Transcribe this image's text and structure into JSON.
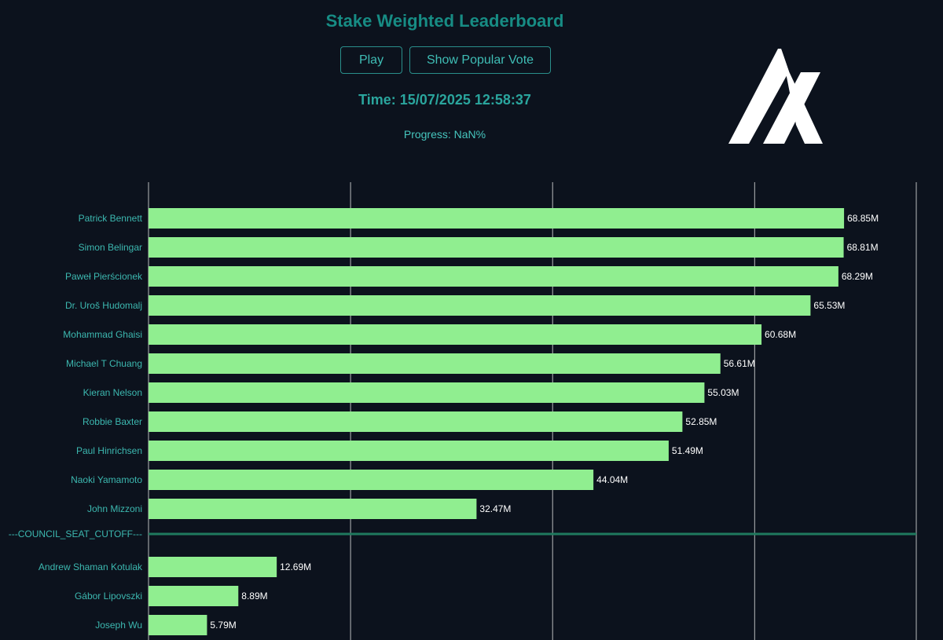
{
  "header": {
    "title": "Stake Weighted Leaderboard",
    "play_label": "Play",
    "popular_vote_label": "Show Popular Vote",
    "time_text": "Time: 15/07/2025 12:58:37",
    "progress_text": "Progress: NaN%"
  },
  "logo": {
    "icon": "algorand-logo-icon",
    "color": "#ffffff"
  },
  "colors": {
    "background": "#0c121d",
    "bar": "#90ee90",
    "label": "#3cb8b0",
    "value_label": "#ffffff",
    "gridline": "#d8d8d8",
    "cutoff_line": "#1f7a5e"
  },
  "chart_data": {
    "type": "bar",
    "orientation": "horizontal",
    "title": "Stake Weighted Leaderboard",
    "xlabel": "",
    "ylabel": "",
    "unit": "M",
    "xlim": [
      0,
      76
    ],
    "grid": true,
    "gridline_values": [
      0,
      20,
      40,
      60,
      76
    ],
    "cutoff_label": "---COUNCIL_SEAT_CUTOFF---",
    "cutoff_after_index": 10,
    "categories": [
      "Patrick Bennett",
      "Simon Belingar",
      "Paweł Pierścionek",
      "Dr. Uroš Hudomalj",
      "Mohammad Ghaisi",
      "Michael T Chuang",
      "Kieran Nelson",
      "Robbie Baxter",
      "Paul Hinrichsen",
      "Naoki Yamamoto",
      "John Mizzoni",
      "Andrew Shaman Kotulak",
      "Gábor Lipovszki",
      "Joseph Wu"
    ],
    "values": [
      68.85,
      68.81,
      68.29,
      65.53,
      60.68,
      56.61,
      55.03,
      52.85,
      51.49,
      44.04,
      32.47,
      12.69,
      8.89,
      5.79
    ],
    "value_labels": [
      "68.85M",
      "68.81M",
      "68.29M",
      "65.53M",
      "60.68M",
      "56.61M",
      "55.03M",
      "52.85M",
      "51.49M",
      "44.04M",
      "32.47M",
      "12.69M",
      "8.89M",
      "5.79M"
    ]
  }
}
